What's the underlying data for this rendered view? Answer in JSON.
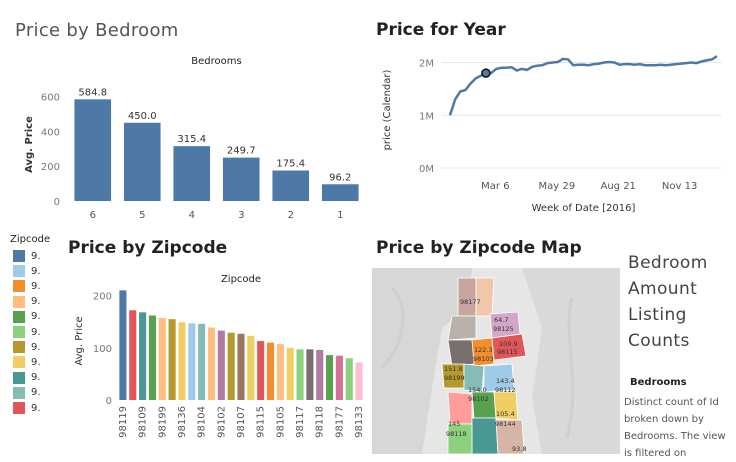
{
  "dashboard": {
    "bedroom_title": "Price by Bedroom",
    "year_title": "Price for Year",
    "zipcode_title": "Price by Zipcode",
    "map_title": "Price by Zipcode Map"
  },
  "legend": {
    "title": "Zipcode",
    "items": [
      {
        "label": "9.",
        "color": "#4e79a7"
      },
      {
        "label": "9.",
        "color": "#a0cbe8"
      },
      {
        "label": "9.",
        "color": "#f28e2b"
      },
      {
        "label": "9.",
        "color": "#ffbe7d"
      },
      {
        "label": "9.",
        "color": "#59a14f"
      },
      {
        "label": "9.",
        "color": "#8cd17d"
      },
      {
        "label": "9.",
        "color": "#b6992d"
      },
      {
        "label": "9.",
        "color": "#f1ce63"
      },
      {
        "label": "9.",
        "color": "#499894"
      },
      {
        "label": "9.",
        "color": "#86bcb6"
      },
      {
        "label": "9.",
        "color": "#e15759"
      }
    ]
  },
  "side_panel": {
    "title": "Bedroom Amount Listing Counts",
    "subtitle": "Bedrooms",
    "description": "Distinct count of Id broken down by Bedrooms. The view is filtered on"
  },
  "map": {
    "labels": [
      "64.7",
      "98125",
      "109.9",
      "98115",
      "122.3",
      "98103",
      "151.8",
      "98199",
      "143.4",
      "98112",
      "105.4",
      "98144",
      "145",
      "98118",
      "154.0",
      "98102",
      "98177",
      "93.8"
    ]
  },
  "chart_data": [
    {
      "type": "bar",
      "title": "Bedrooms",
      "categories": [
        "6",
        "5",
        "4",
        "3",
        "2",
        "1"
      ],
      "values": [
        584.8,
        450.0,
        315.4,
        249.7,
        175.4,
        96.2
      ],
      "value_labels": [
        "584.8",
        "450.0",
        "315.4",
        "249.7",
        "175.4",
        "96.2"
      ],
      "ylabel": "Avg. Price",
      "yticks": [
        0,
        200,
        400,
        600
      ],
      "ylim": [
        0,
        650
      ],
      "color": "#4e79a7"
    },
    {
      "type": "line",
      "xlabel": "Week of Date [2016]",
      "ylabel": "price (Calendar)",
      "xticks": [
        "Mar 6",
        "May 29",
        "Aug 21",
        "Nov 13"
      ],
      "yticks": [
        "0M",
        "1M",
        "2M"
      ],
      "ytick_values": [
        0,
        1000000,
        2000000
      ],
      "ylim": [
        0,
        2200000
      ],
      "x": [
        0,
        1,
        2,
        3,
        4,
        5,
        6,
        7,
        8,
        9,
        10,
        11,
        12,
        13,
        14,
        15,
        16,
        17,
        18,
        19,
        20,
        21,
        22,
        23,
        24,
        25,
        26,
        27,
        28,
        29,
        30,
        31,
        32,
        33,
        34,
        35,
        36,
        37,
        38,
        39,
        40,
        41,
        42,
        43,
        44,
        45,
        46,
        47,
        48,
        49,
        50,
        51,
        52
      ],
      "values": [
        1000000,
        1300000,
        1450000,
        1480000,
        1600000,
        1700000,
        1750000,
        1800000,
        1800000,
        1880000,
        1900000,
        1900000,
        1910000,
        1850000,
        1880000,
        1860000,
        1920000,
        1940000,
        1950000,
        1990000,
        2000000,
        2010000,
        2070000,
        2060000,
        1950000,
        1960000,
        1960000,
        1950000,
        1970000,
        1980000,
        2000000,
        2010000,
        2000000,
        1960000,
        1970000,
        1970000,
        1960000,
        1970000,
        1950000,
        1950000,
        1950000,
        1960000,
        1950000,
        1960000,
        1970000,
        1980000,
        1990000,
        2000000,
        1990000,
        2020000,
        2040000,
        2060000,
        2120000
      ],
      "highlight_index": 7,
      "color": "#4e79a7"
    },
    {
      "type": "bar",
      "title": "Zipcode",
      "ylabel": "Avg. Price",
      "yticks": [
        0,
        100,
        200
      ],
      "ylim": [
        0,
        230
      ],
      "categories": [
        "98119",
        "",
        "98109",
        "",
        "98199",
        "",
        "98136",
        "",
        "98104",
        "",
        "98102",
        "",
        "98107",
        "",
        "98115",
        "",
        "98105",
        "",
        "98117",
        "",
        "98118",
        "",
        "98177",
        "",
        "98133"
      ],
      "values": [
        210,
        172,
        168,
        162,
        157,
        155,
        149,
        147,
        146,
        139,
        133,
        129,
        127,
        123,
        113,
        110,
        107,
        100,
        97,
        97,
        96,
        86,
        85,
        80,
        72
      ],
      "colors": [
        "#4e79a7",
        "#e15759",
        "#499894",
        "#59a14f",
        "#ffbe7d",
        "#b6992d",
        "#f1ce63",
        "#a0cbe8",
        "#86bcb6",
        "#ffbe7d",
        "#b07aa1",
        "#b6992d",
        "#9d7660",
        "#f1ce63",
        "#e15759",
        "#f28e2b",
        "#ffbe7d",
        "#f1ce63",
        "#8cd17d",
        "#79706e",
        "#b07aa1",
        "#59a14f",
        "#d37295",
        "#8cd17d",
        "#fabfd2"
      ]
    }
  ]
}
